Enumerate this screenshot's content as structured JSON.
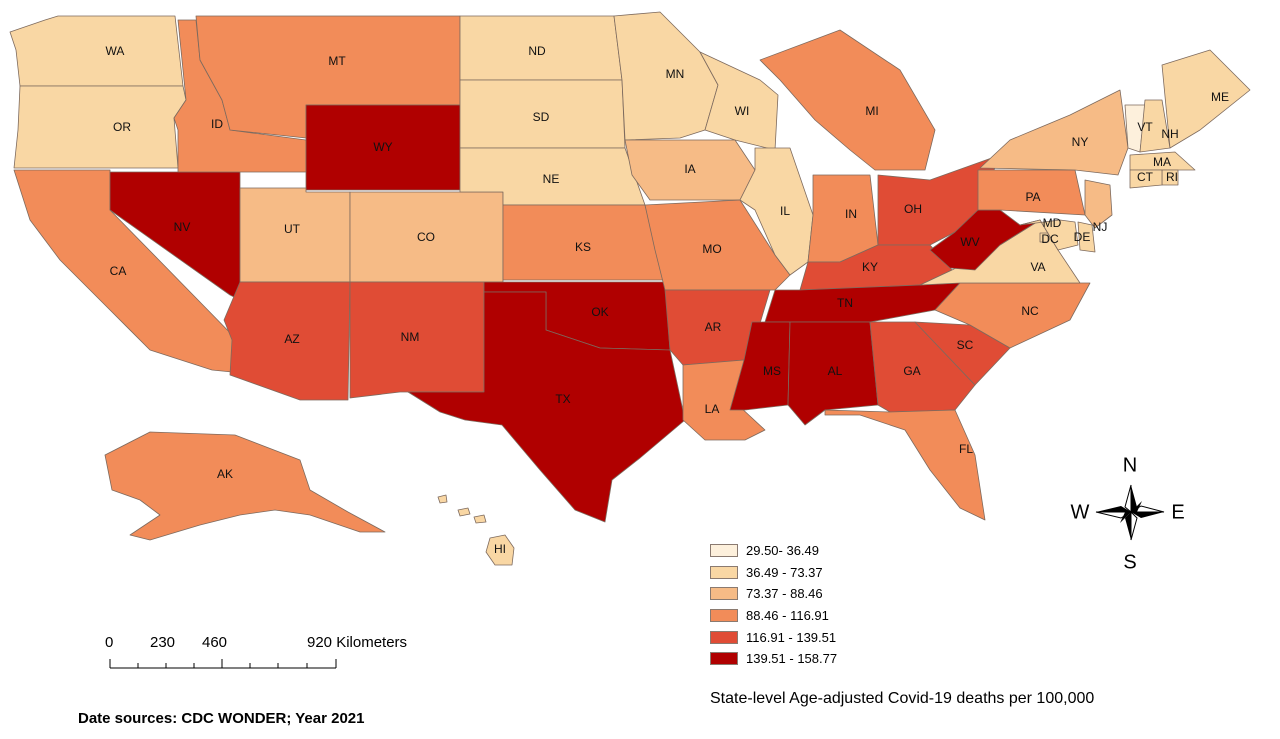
{
  "map": {
    "legend_title": "State-level Age-adjusted Covid-19 deaths per 100,000",
    "source": "Date sources: CDC WONDER; Year 2021",
    "classes": [
      {
        "label": "29.50- 36.49",
        "color": "#fdf0dc"
      },
      {
        "label": "36.49 - 73.37",
        "color": "#f9d7a4"
      },
      {
        "label": "73.37 - 88.46",
        "color": "#f6bb86"
      },
      {
        "label": "88.46 - 116.91",
        "color": "#f28c59"
      },
      {
        "label": "116.91 - 139.51",
        "color": "#e04c35"
      },
      {
        "label": "139.51 - 158.77",
        "color": "#b00000"
      }
    ],
    "scale_bar": {
      "ticks": [
        "0",
        "230",
        "460",
        "920 Kilometers"
      ]
    },
    "compass": {
      "n": "N",
      "s": "S",
      "e": "E",
      "w": "W"
    },
    "states": [
      {
        "abbr": "WA",
        "class": 1
      },
      {
        "abbr": "OR",
        "class": 1
      },
      {
        "abbr": "CA",
        "class": 3
      },
      {
        "abbr": "NV",
        "class": 5
      },
      {
        "abbr": "ID",
        "class": 3
      },
      {
        "abbr": "MT",
        "class": 3
      },
      {
        "abbr": "WY",
        "class": 5
      },
      {
        "abbr": "UT",
        "class": 2
      },
      {
        "abbr": "CO",
        "class": 2
      },
      {
        "abbr": "AZ",
        "class": 4
      },
      {
        "abbr": "NM",
        "class": 4
      },
      {
        "abbr": "ND",
        "class": 1
      },
      {
        "abbr": "SD",
        "class": 1
      },
      {
        "abbr": "NE",
        "class": 1
      },
      {
        "abbr": "KS",
        "class": 3
      },
      {
        "abbr": "OK",
        "class": 5
      },
      {
        "abbr": "TX",
        "class": 5
      },
      {
        "abbr": "MN",
        "class": 1
      },
      {
        "abbr": "IA",
        "class": 2
      },
      {
        "abbr": "MO",
        "class": 3
      },
      {
        "abbr": "AR",
        "class": 4
      },
      {
        "abbr": "LA",
        "class": 3
      },
      {
        "abbr": "WI",
        "class": 1
      },
      {
        "abbr": "IL",
        "class": 1
      },
      {
        "abbr": "MI",
        "class": 3
      },
      {
        "abbr": "IN",
        "class": 3
      },
      {
        "abbr": "OH",
        "class": 4
      },
      {
        "abbr": "KY",
        "class": 4
      },
      {
        "abbr": "TN",
        "class": 5
      },
      {
        "abbr": "MS",
        "class": 5
      },
      {
        "abbr": "AL",
        "class": 5
      },
      {
        "abbr": "GA",
        "class": 4
      },
      {
        "abbr": "FL",
        "class": 3
      },
      {
        "abbr": "SC",
        "class": 4
      },
      {
        "abbr": "NC",
        "class": 3
      },
      {
        "abbr": "VA",
        "class": 1
      },
      {
        "abbr": "WV",
        "class": 5
      },
      {
        "abbr": "PA",
        "class": 3
      },
      {
        "abbr": "NY",
        "class": 2
      },
      {
        "abbr": "VT",
        "class": 0
      },
      {
        "abbr": "NH",
        "class": 1
      },
      {
        "abbr": "ME",
        "class": 1
      },
      {
        "abbr": "MA",
        "class": 1
      },
      {
        "abbr": "RI",
        "class": 1
      },
      {
        "abbr": "CT",
        "class": 1
      },
      {
        "abbr": "NJ",
        "class": 2
      },
      {
        "abbr": "DE",
        "class": 1
      },
      {
        "abbr": "MD",
        "class": 1
      },
      {
        "abbr": "DC",
        "class": 1
      },
      {
        "abbr": "AK",
        "class": 3
      },
      {
        "abbr": "HI",
        "class": 1
      }
    ]
  }
}
